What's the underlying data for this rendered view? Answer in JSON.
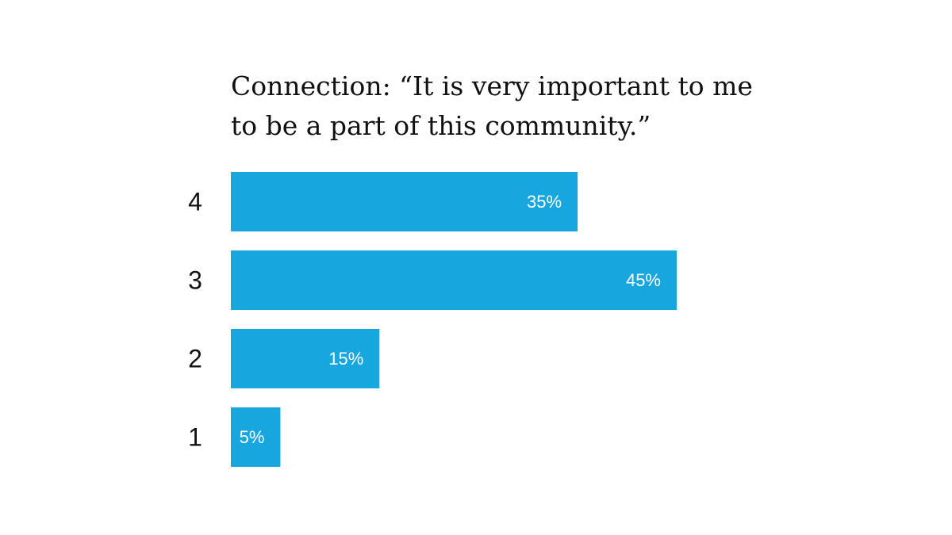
{
  "chart_data": {
    "type": "bar",
    "orientation": "horizontal",
    "title_lines": [
      "Connection: “It is very important to me",
      "to be a part of this community.”"
    ],
    "categories": [
      "4",
      "3",
      "2",
      "1"
    ],
    "values": [
      35,
      45,
      15,
      5
    ],
    "value_labels": [
      "35%",
      "45%",
      "15%",
      "5%"
    ],
    "unit": "%",
    "xlim": [
      0,
      45
    ],
    "grid": false,
    "bar_color": "#18a6df",
    "value_label_color": "#ffffff"
  }
}
